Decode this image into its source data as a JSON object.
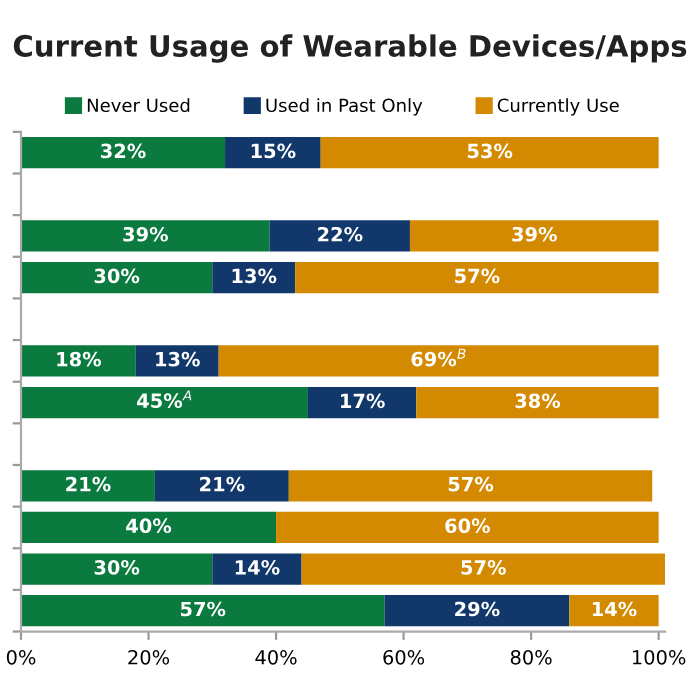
{
  "chart_data": {
    "type": "bar",
    "orientation": "horizontal",
    "stacked": true,
    "title": "Current Usage of Wearable Devices/Apps",
    "categories": [
      null,
      null,
      null,
      null,
      null,
      null,
      null,
      null,
      null,
      null,
      null,
      null
    ],
    "series": [
      {
        "name": "Never Used",
        "color": "#0b7a3e",
        "values": [
          32,
          null,
          39,
          30,
          null,
          18,
          45,
          null,
          21,
          40,
          30,
          57
        ],
        "value_labels": [
          "32%",
          null,
          "39%",
          "30%",
          null,
          "18%",
          "45%$^{A}$",
          null,
          "21%",
          "40%",
          "30%",
          "57%"
        ]
      },
      {
        "name": "Used in Past Only",
        "color": "#12386b",
        "values": [
          15,
          null,
          22,
          13,
          null,
          13,
          17,
          null,
          21,
          0,
          14,
          29
        ],
        "value_labels": [
          "15%",
          null,
          "22%",
          "13%",
          null,
          "13%",
          "17%",
          null,
          "21%",
          null,
          "14%",
          "29%"
        ]
      },
      {
        "name": "Currently Use",
        "color": "#d48a00",
        "values": [
          53,
          null,
          39,
          57,
          null,
          69,
          38,
          null,
          57,
          60,
          57,
          14
        ],
        "value_labels": [
          "53%",
          null,
          "39%",
          "57%",
          null,
          "69%$^{B}$",
          "38%",
          null,
          "57%",
          "60%",
          "57%",
          "14%"
        ]
      }
    ],
    "xlim": [
      0,
      101
    ],
    "xticks": [
      {
        "value": 0,
        "label": "0%"
      },
      {
        "value": 20,
        "label": "20%"
      },
      {
        "value": 40,
        "label": "40%"
      },
      {
        "value": 60,
        "label": "60%"
      },
      {
        "value": 80,
        "label": "80%"
      },
      {
        "value": 100,
        "label": "100%"
      }
    ],
    "tick_labels": "x",
    "legend": "top",
    "grid": false
  }
}
